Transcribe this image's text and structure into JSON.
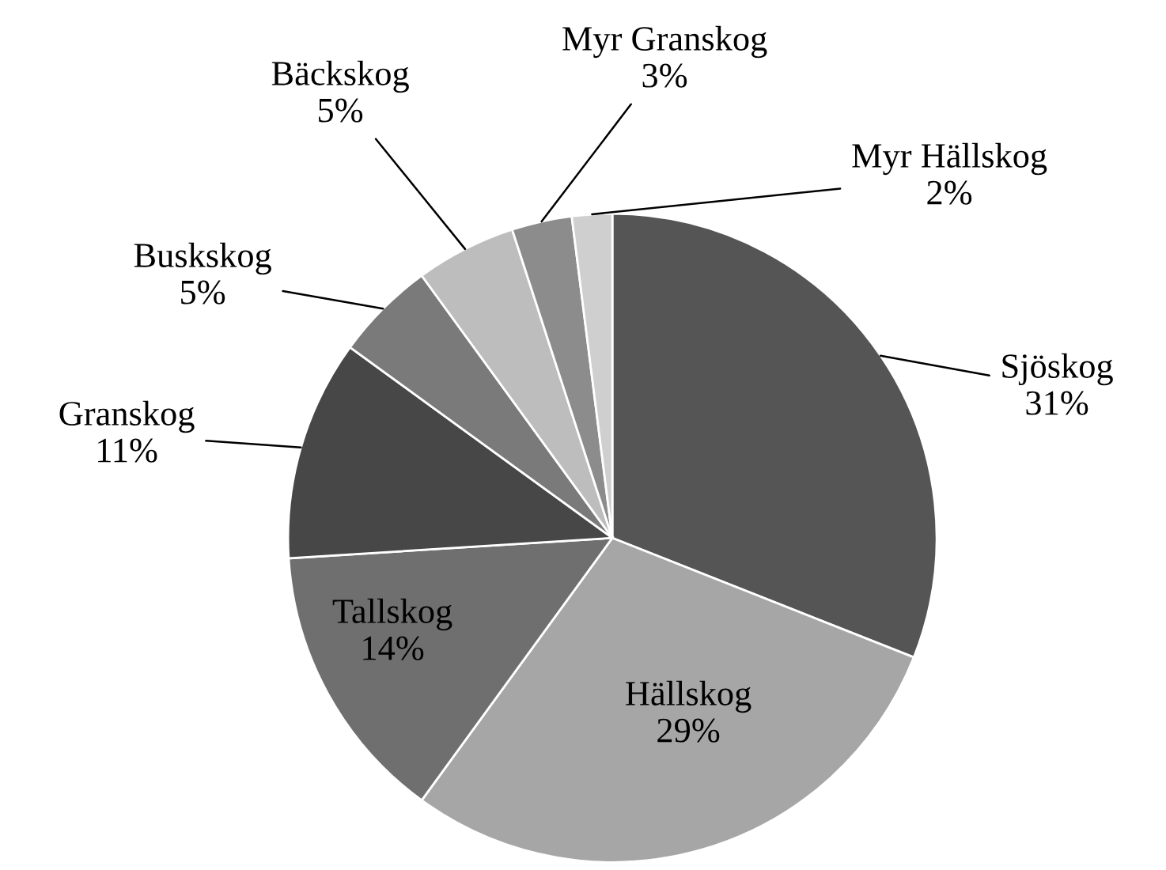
{
  "chart_data": {
    "type": "pie",
    "categories": [
      "Sjöskog",
      "Hällskog",
      "Tallskog",
      "Granskog",
      "Buskskog",
      "Bäckskog",
      "Myr Granskog",
      "Myr Hällskog"
    ],
    "values": [
      31,
      29,
      14,
      11,
      5,
      5,
      3,
      2
    ],
    "value_labels": [
      "31%",
      "29%",
      "14%",
      "11%",
      "5%",
      "5%",
      "3%",
      "2%"
    ],
    "colors": [
      "#555555",
      "#a6a6a6",
      "#6f6f6f",
      "#474747",
      "#7a7a7a",
      "#bdbdbd",
      "#8c8c8c",
      "#cfcfcf"
    ]
  }
}
